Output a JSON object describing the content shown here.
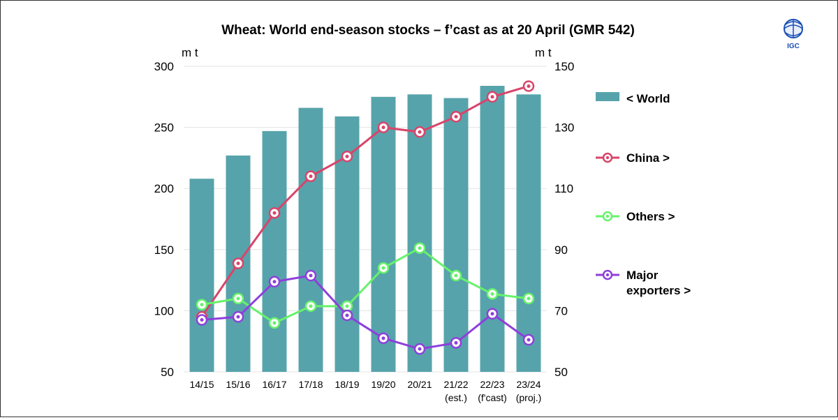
{
  "chart_data": {
    "type": "bar+line",
    "title": "Wheat: World end-season stocks – f’cast as at 20 April (GMR 542)",
    "logo": "IGC",
    "y_left": {
      "unit": "m t",
      "lim": [
        50,
        300
      ],
      "ticks": [
        "300",
        "250",
        "200",
        "150",
        "100",
        "50"
      ],
      "tick_values": [
        300,
        250,
        200,
        150,
        100,
        50
      ]
    },
    "y_right": {
      "unit": "m t",
      "lim": [
        50,
        150
      ],
      "ticks": [
        "150",
        "130",
        "110",
        "90",
        "70",
        "50"
      ],
      "tick_values": [
        150,
        130,
        110,
        90,
        70,
        50
      ]
    },
    "categories": [
      [
        "14/15"
      ],
      [
        "15/16"
      ],
      [
        "16/17"
      ],
      [
        "17/18"
      ],
      [
        "18/19"
      ],
      [
        "19/20"
      ],
      [
        "20/21"
      ],
      [
        "21/22",
        "(est.)"
      ],
      [
        "22/23",
        "(f'cast)"
      ],
      [
        "23/24",
        "(proj.)"
      ]
    ],
    "grid": true,
    "legend_position": "right",
    "series": [
      {
        "name": "< World",
        "type": "bar",
        "axis": "left",
        "color": "#57a3ab",
        "values": [
          208,
          227,
          247,
          266,
          259,
          275,
          277,
          274,
          284,
          277
        ]
      },
      {
        "name": "China >",
        "type": "line",
        "axis": "right",
        "color": "#d9446a",
        "values": [
          68,
          85.5,
          102,
          114,
          120.5,
          130,
          128.5,
          133.5,
          140,
          143.5
        ]
      },
      {
        "name": "Others >",
        "type": "line",
        "axis": "right",
        "color": "#66f26b",
        "values": [
          72,
          74,
          66,
          71.5,
          71.5,
          84,
          90.5,
          81.5,
          75.5,
          74
        ]
      },
      {
        "name": "Major exporters >",
        "legend_lines": [
          "Major",
          "exporters >"
        ],
        "type": "line",
        "axis": "right",
        "color": "#8e3fdc",
        "values": [
          67,
          68,
          79.5,
          81.5,
          68.5,
          61,
          57.5,
          59.5,
          69,
          60.5
        ]
      }
    ]
  }
}
